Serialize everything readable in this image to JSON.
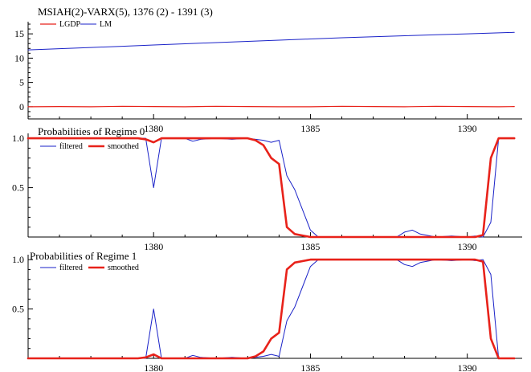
{
  "chart_data": [
    {
      "type": "line",
      "title": "MSIAH(2)-VARX(5), 1376 (2) - 1391 (3)",
      "xlabel": "",
      "ylabel": "",
      "xlim": [
        1376.0,
        1391.75
      ],
      "ylim": [
        -2.5,
        17.5
      ],
      "xticks": [
        1380,
        1385,
        1390
      ],
      "yticks": [
        0,
        5,
        10,
        15
      ],
      "grid": false,
      "legend": "top-left",
      "x": [
        1376.0,
        1377.0,
        1378.0,
        1379.0,
        1380.0,
        1381.0,
        1382.0,
        1383.0,
        1384.0,
        1385.0,
        1386.0,
        1387.0,
        1388.0,
        1389.0,
        1390.0,
        1391.0,
        1391.5
      ],
      "series": [
        {
          "name": "LGDP",
          "color": "#e8221a",
          "width": 1.2,
          "values": [
            0.0,
            0.05,
            0.0,
            0.1,
            0.05,
            0.0,
            0.1,
            0.05,
            0.0,
            0.0,
            0.1,
            0.05,
            0.0,
            0.1,
            0.05,
            0.0,
            0.05
          ]
        },
        {
          "name": "LM",
          "color": "#1a22c8",
          "width": 1.0,
          "values": [
            11.7,
            11.95,
            12.2,
            12.45,
            12.7,
            12.95,
            13.2,
            13.45,
            13.7,
            13.95,
            14.2,
            14.4,
            14.6,
            14.8,
            15.0,
            15.2,
            15.3
          ]
        }
      ]
    },
    {
      "type": "line",
      "title": "Probabilities of Regime 0",
      "xlabel": "",
      "ylabel": "",
      "xlim": [
        1376.0,
        1391.75
      ],
      "ylim": [
        0.0,
        1.05
      ],
      "xticks": [
        1380,
        1385,
        1390
      ],
      "yticks": [
        0.5,
        1.0
      ],
      "ytick_labels": [
        "0.5",
        "1.0"
      ],
      "grid": false,
      "legend": "top-left",
      "series": [
        {
          "name": "filtered",
          "color": "#1a22c8",
          "width": 1.0,
          "x": [
            1376.0,
            1378.0,
            1379.5,
            1379.75,
            1380.0,
            1380.25,
            1380.5,
            1381.0,
            1381.25,
            1381.5,
            1382.0,
            1382.5,
            1383.0,
            1383.5,
            1383.75,
            1384.0,
            1384.25,
            1384.5,
            1385.0,
            1385.25,
            1385.5,
            1386.0,
            1387.0,
            1387.75,
            1388.0,
            1388.25,
            1388.5,
            1389.0,
            1389.5,
            1390.0,
            1390.25,
            1390.5,
            1390.75,
            1391.0,
            1391.5
          ],
          "values": [
            1.0,
            1.0,
            1.0,
            1.0,
            0.5,
            1.0,
            1.0,
            1.0,
            0.97,
            0.99,
            1.0,
            0.99,
            1.0,
            0.98,
            0.96,
            0.98,
            0.62,
            0.48,
            0.07,
            0.0,
            0.0,
            0.0,
            0.0,
            0.0,
            0.05,
            0.07,
            0.03,
            0.0,
            0.01,
            0.0,
            0.01,
            0.0,
            0.15,
            1.0,
            1.0
          ]
        },
        {
          "name": "smoothed",
          "color": "#e8221a",
          "width": 2.6,
          "x": [
            1376.0,
            1378.0,
            1379.5,
            1379.75,
            1380.0,
            1380.25,
            1381.0,
            1382.0,
            1383.0,
            1383.25,
            1383.5,
            1383.75,
            1384.0,
            1384.25,
            1384.5,
            1385.0,
            1386.0,
            1387.0,
            1388.0,
            1389.0,
            1390.0,
            1390.25,
            1390.5,
            1390.75,
            1391.0,
            1391.5
          ],
          "values": [
            1.0,
            1.0,
            1.0,
            0.99,
            0.96,
            1.0,
            1.0,
            1.0,
            1.0,
            0.98,
            0.93,
            0.8,
            0.74,
            0.1,
            0.03,
            0.0,
            0.0,
            0.0,
            0.0,
            0.0,
            0.0,
            0.0,
            0.02,
            0.8,
            1.0,
            1.0
          ]
        }
      ]
    },
    {
      "type": "line",
      "title": "Probabilities of Regime 1",
      "xlabel": "",
      "ylabel": "",
      "xlim": [
        1376.0,
        1391.75
      ],
      "ylim": [
        0.0,
        1.05
      ],
      "xticks": [
        1380,
        1385,
        1390
      ],
      "yticks": [
        0.5,
        1.0
      ],
      "ytick_labels": [
        "0.5",
        "1.0"
      ],
      "grid": false,
      "legend": "top-left",
      "series": [
        {
          "name": "filtered",
          "color": "#1a22c8",
          "width": 1.0,
          "x": [
            1376.0,
            1378.0,
            1379.5,
            1379.75,
            1380.0,
            1380.25,
            1380.5,
            1381.0,
            1381.25,
            1381.5,
            1382.0,
            1382.5,
            1383.0,
            1383.5,
            1383.75,
            1384.0,
            1384.25,
            1384.5,
            1385.0,
            1385.25,
            1385.5,
            1386.0,
            1387.0,
            1387.75,
            1388.0,
            1388.25,
            1388.5,
            1389.0,
            1389.5,
            1390.0,
            1390.25,
            1390.5,
            1390.75,
            1391.0,
            1391.5
          ],
          "values": [
            0.0,
            0.0,
            0.0,
            0.0,
            0.5,
            0.0,
            0.0,
            0.0,
            0.03,
            0.01,
            0.0,
            0.01,
            0.0,
            0.02,
            0.04,
            0.02,
            0.38,
            0.52,
            0.93,
            1.0,
            1.0,
            1.0,
            1.0,
            1.0,
            0.95,
            0.93,
            0.97,
            1.0,
            0.99,
            1.0,
            0.99,
            1.0,
            0.85,
            0.0,
            0.0
          ]
        },
        {
          "name": "smoothed",
          "color": "#e8221a",
          "width": 2.6,
          "x": [
            1376.0,
            1378.0,
            1379.5,
            1379.75,
            1380.0,
            1380.25,
            1381.0,
            1382.0,
            1383.0,
            1383.25,
            1383.5,
            1383.75,
            1384.0,
            1384.25,
            1384.5,
            1385.0,
            1386.0,
            1387.0,
            1388.0,
            1389.0,
            1390.0,
            1390.25,
            1390.5,
            1390.75,
            1391.0,
            1391.5
          ],
          "values": [
            0.0,
            0.0,
            0.0,
            0.01,
            0.04,
            0.0,
            0.0,
            0.0,
            0.0,
            0.02,
            0.07,
            0.2,
            0.26,
            0.9,
            0.97,
            1.0,
            1.0,
            1.0,
            1.0,
            1.0,
            1.0,
            1.0,
            0.98,
            0.2,
            0.0,
            0.0
          ]
        }
      ]
    }
  ]
}
